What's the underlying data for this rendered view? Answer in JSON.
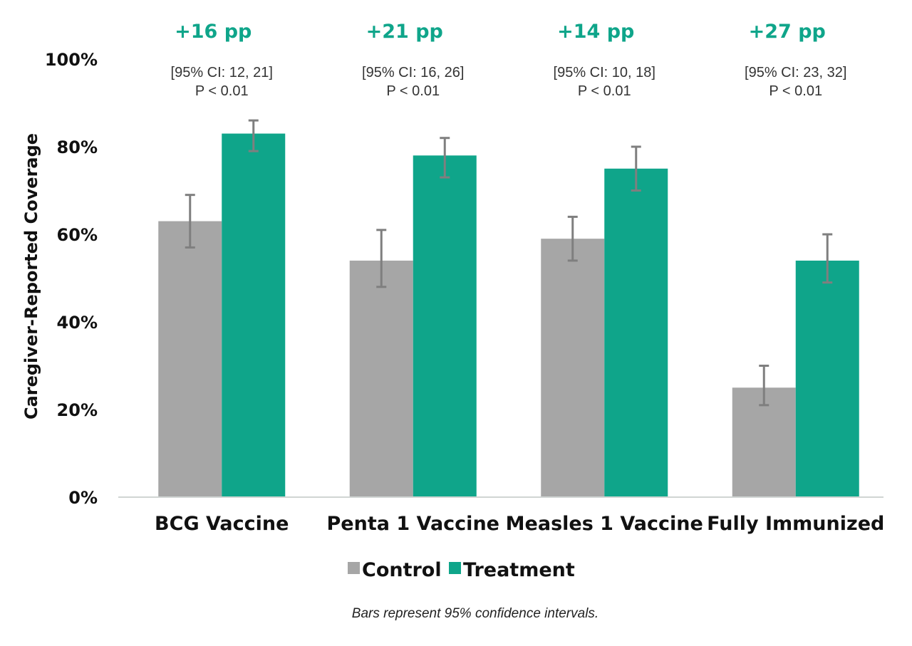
{
  "chart_data": {
    "type": "bar",
    "categories": [
      "BCG Vaccine",
      "Penta 1 Vaccine",
      "Measles 1 Vaccine",
      "Fully Immunized"
    ],
    "series": [
      {
        "name": "Control",
        "color": "#a6a6a6",
        "values": [
          63,
          54,
          59,
          25
        ],
        "ci_low": [
          57,
          48,
          54,
          21
        ],
        "ci_high": [
          69,
          61,
          64,
          30
        ]
      },
      {
        "name": "Treatment",
        "color": "#0fa58a",
        "values": [
          83,
          78,
          75,
          54
        ],
        "ci_low": [
          79,
          73,
          70,
          49
        ],
        "ci_high": [
          86,
          82,
          80,
          60
        ]
      }
    ],
    "annotations": [
      {
        "diff": "+16 pp",
        "ci": "[95% CI: 12, 21]",
        "p": "P < 0.01"
      },
      {
        "diff": "+21 pp",
        "ci": "[95% CI: 16, 26]",
        "p": "P < 0.01"
      },
      {
        "diff": "+14 pp",
        "ci": "[95% CI: 10, 18]",
        "p": "P < 0.01"
      },
      {
        "diff": "+27 pp",
        "ci": "[95% CI: 23, 32]",
        "p": "P < 0.01"
      }
    ],
    "ylabel": "Caregiver-Reported Coverage",
    "xlabel": "",
    "ylim": [
      0,
      100
    ],
    "yticks": [
      0,
      20,
      40,
      60,
      80,
      100
    ],
    "ytick_labels": [
      "0%",
      "20%",
      "40%",
      "60%",
      "80%",
      "100%"
    ],
    "grid": false,
    "legend_position": "bottom-center",
    "error_bar_color": "#7f7f7f",
    "axis_color": "#d0d5d3",
    "diff_color": "#0fa58a",
    "footnote": "Bars represent 95% confidence intervals."
  }
}
